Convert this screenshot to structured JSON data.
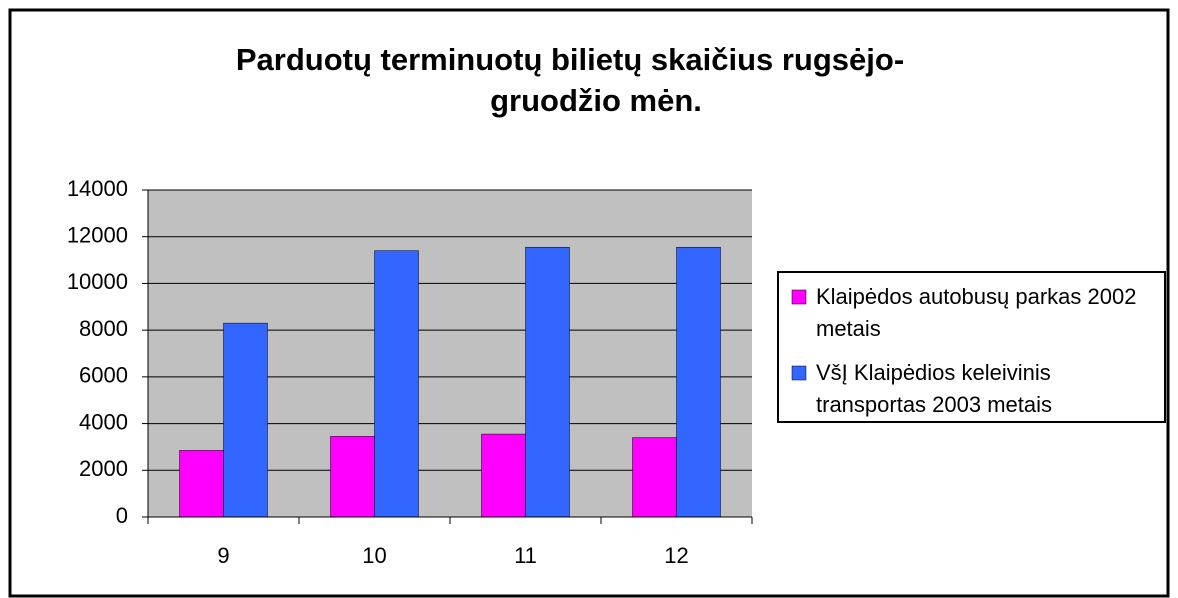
{
  "chart_data": {
    "type": "bar",
    "title": [
      "Parduotų terminuotų bilietų skaičius rugsėjo-",
      "gruodžio mėn."
    ],
    "categories": [
      "9",
      "10",
      "11",
      "12"
    ],
    "series": [
      {
        "name": "Klaipėdos autobusų parkas 2002 metais",
        "color": "#ff00ff",
        "values": [
          2850,
          3450,
          3550,
          3400
        ]
      },
      {
        "name": "VšĮ Klaipėdios keleivinis transportas 2003 metais",
        "color": "#3366ff",
        "values": [
          8300,
          11400,
          11550,
          11550
        ]
      }
    ],
    "ylim": [
      0,
      14000
    ],
    "yticks": [
      0,
      2000,
      4000,
      6000,
      8000,
      10000,
      12000,
      14000
    ],
    "grid": true,
    "legend": "right"
  }
}
